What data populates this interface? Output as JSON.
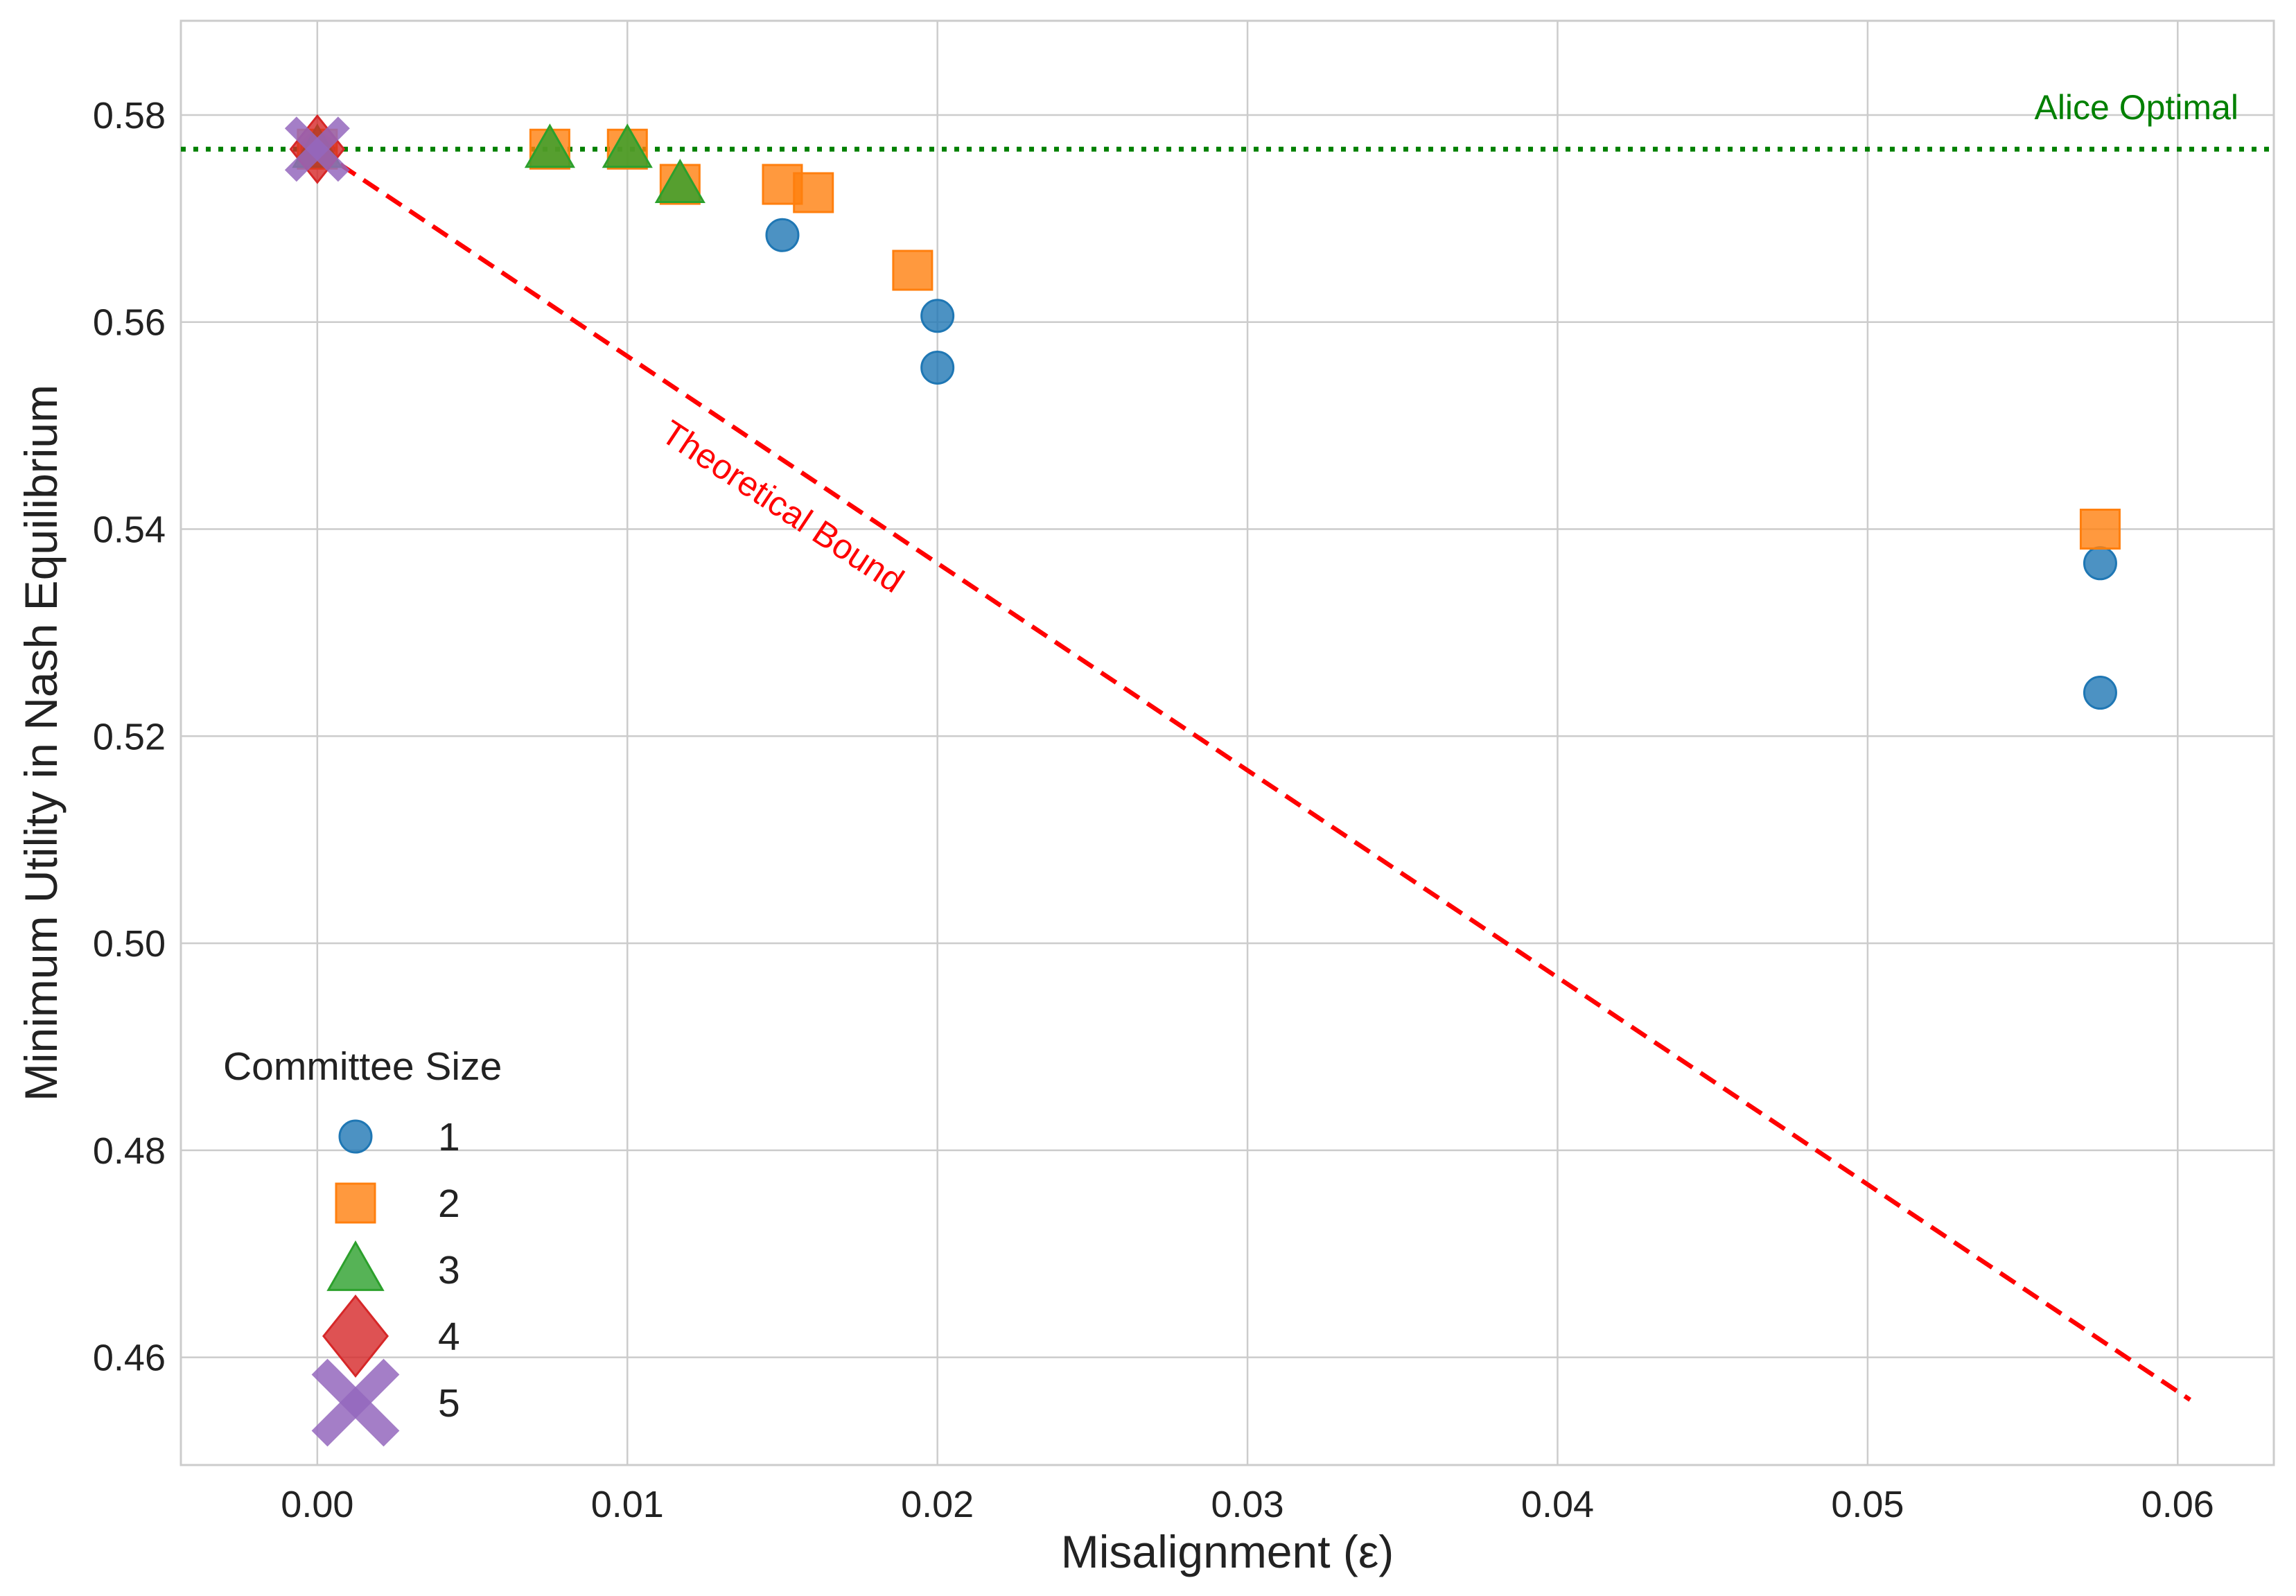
{
  "chart_data": {
    "type": "scatter",
    "xlabel": "Misalignment (ε)",
    "ylabel": "Minimum Utility in Nash Equilibrium",
    "xlim": [
      -0.0044,
      0.0631
    ],
    "ylim": [
      0.4496,
      0.5891
    ],
    "x_ticks": [
      0.0,
      0.01,
      0.02,
      0.03,
      0.04,
      0.05,
      0.06
    ],
    "x_tick_labels": [
      "0.00",
      "0.01",
      "0.02",
      "0.03",
      "0.04",
      "0.05",
      "0.06"
    ],
    "y_ticks": [
      0.46,
      0.48,
      0.5,
      0.52,
      0.54,
      0.56,
      0.58
    ],
    "y_tick_labels": [
      "0.46",
      "0.48",
      "0.50",
      "0.52",
      "0.54",
      "0.56",
      "0.58"
    ],
    "grid": true,
    "legend": {
      "title": "Committee Size",
      "placement": "lower-left"
    },
    "series": [
      {
        "name": "1",
        "marker": "circle",
        "color": "#1f77b4",
        "points": [
          [
            0.0,
            0.5767
          ],
          [
            0.015,
            0.5684
          ],
          [
            0.02,
            0.5606
          ],
          [
            0.02,
            0.5556
          ],
          [
            0.0575,
            0.5367
          ],
          [
            0.0575,
            0.5242
          ]
        ]
      },
      {
        "name": "2",
        "marker": "square",
        "color": "#ff7f0e",
        "points": [
          [
            0.0,
            0.5767
          ],
          [
            0.0075,
            0.5767
          ],
          [
            0.01,
            0.5767
          ],
          [
            0.0117,
            0.5733
          ],
          [
            0.015,
            0.5733
          ],
          [
            0.016,
            0.5725
          ],
          [
            0.0192,
            0.565
          ],
          [
            0.0575,
            0.54
          ]
        ]
      },
      {
        "name": "3",
        "marker": "triangle",
        "color": "#2ca02c",
        "points": [
          [
            0.0,
            0.5767
          ],
          [
            0.0075,
            0.5767
          ],
          [
            0.01,
            0.5767
          ],
          [
            0.0117,
            0.5733
          ]
        ]
      },
      {
        "name": "4",
        "marker": "diamond",
        "color": "#d62728",
        "points": [
          [
            0.0,
            0.5767
          ]
        ]
      },
      {
        "name": "5",
        "marker": "x",
        "color": "#9467bd",
        "points": [
          [
            0.0,
            0.5767
          ]
        ]
      }
    ],
    "reference_lines": [
      {
        "name": "Alice Optimal",
        "style": "dotted",
        "color": "#008000",
        "y": 0.5767,
        "label": "Alice Optimal"
      },
      {
        "name": "Theoretical Bound",
        "style": "dashed",
        "color": "#ff0000",
        "x": [
          0.0,
          0.0604
        ],
        "y": [
          0.5767,
          0.4559
        ],
        "label": "Theoretical Bound"
      }
    ]
  }
}
